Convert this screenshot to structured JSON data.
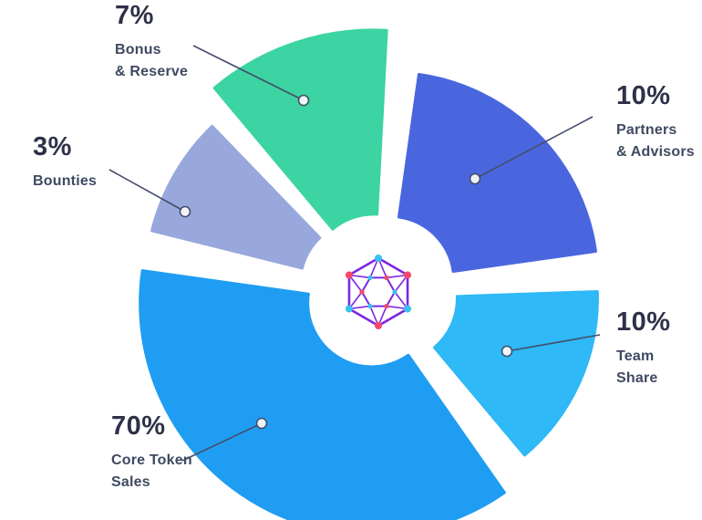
{
  "chart_data": {
    "type": "pie",
    "title": "",
    "unit": "%",
    "legend_position": "callout-labels-around-pie",
    "center_icon": "hexagon-network-logo",
    "segments": [
      {
        "name": "Bonus & Reserve",
        "value": 7,
        "pct_label": "7%",
        "sublabel": "Bonus\n& Reserve",
        "color": "#3bd4a2"
      },
      {
        "name": "Partners & Advisors",
        "value": 10,
        "pct_label": "10%",
        "sublabel": "Partners\n& Advisors",
        "color": "#4a66df"
      },
      {
        "name": "Team Share",
        "value": 10,
        "pct_label": "10%",
        "sublabel": "Team\nShare",
        "color": "#2fb9f6"
      },
      {
        "name": "Core Token Sales",
        "value": 70,
        "pct_label": "70%",
        "sublabel": "Core Token\nSales",
        "color": "#1f9df3"
      },
      {
        "name": "Bounties",
        "value": 3,
        "pct_label": "3%",
        "sublabel": "Bounties",
        "color": "#98a7dc"
      }
    ],
    "style": {
      "label_color": "#2f3148",
      "sublabel_color": "#3f4961",
      "line_color": "#454e68",
      "marker_fill": "#ffffff",
      "logo_line_color": "#7d26e0",
      "logo_dot_cyan": "#38c3f1",
      "logo_dot_red": "#f4476b"
    }
  }
}
